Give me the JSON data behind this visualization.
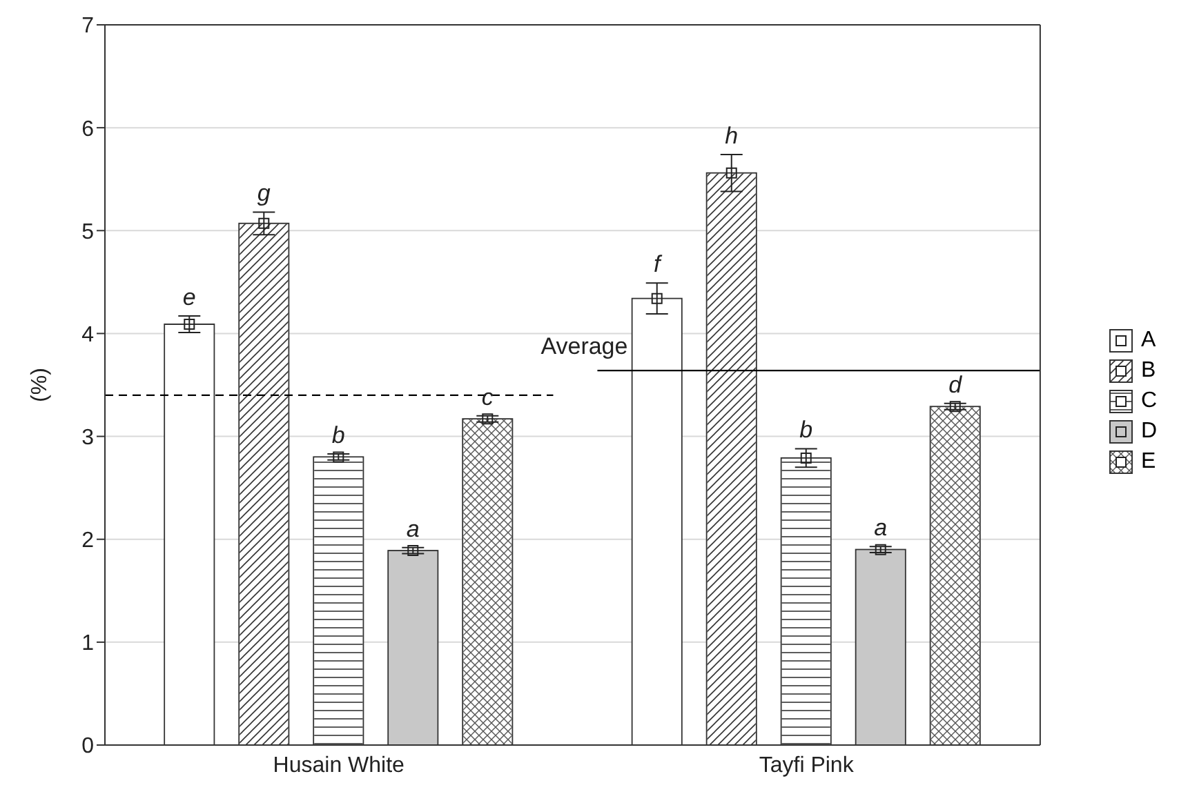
{
  "chart_data": {
    "type": "bar",
    "ylabel": "(%)",
    "categories": [
      "Husain White",
      "Tayfi Pink"
    ],
    "series": [
      {
        "name": "A",
        "color": "#ffffff",
        "values": [
          4.09,
          4.34
        ],
        "errors": [
          0.08,
          0.15
        ],
        "value_labels": [
          "e",
          "f"
        ]
      },
      {
        "name": "B",
        "color": "#ffffff",
        "values": [
          5.07,
          5.56
        ],
        "errors": [
          0.11,
          0.18
        ],
        "value_labels": [
          "g",
          "h"
        ]
      },
      {
        "name": "C",
        "color": "#ffffff",
        "values": [
          2.8,
          2.79
        ],
        "errors": [
          0.03,
          0.09
        ],
        "value_labels": [
          "b",
          "b"
        ]
      },
      {
        "name": "D",
        "color": "#c8c8c8",
        "values": [
          1.89,
          1.9
        ],
        "errors": [
          0.03,
          0.03
        ],
        "value_labels": [
          "a",
          "a"
        ]
      },
      {
        "name": "E",
        "color": "#ffffff",
        "values": [
          3.17,
          3.29
        ],
        "errors": [
          0.03,
          0.03
        ],
        "value_labels": [
          "c",
          "d"
        ]
      }
    ],
    "ylim": [
      0,
      7
    ],
    "yticks": [
      0,
      1,
      2,
      3,
      4,
      5,
      6,
      7
    ],
    "grid": "y",
    "legend": "right",
    "marker": "square",
    "ref_lines": [
      {
        "axis": "y",
        "value": 3.4,
        "line_style": "dashed",
        "color": "#000000"
      },
      {
        "axis": "y",
        "value": 3.64,
        "label": "Average",
        "line_style": "solid",
        "color": "#000000"
      }
    ]
  }
}
